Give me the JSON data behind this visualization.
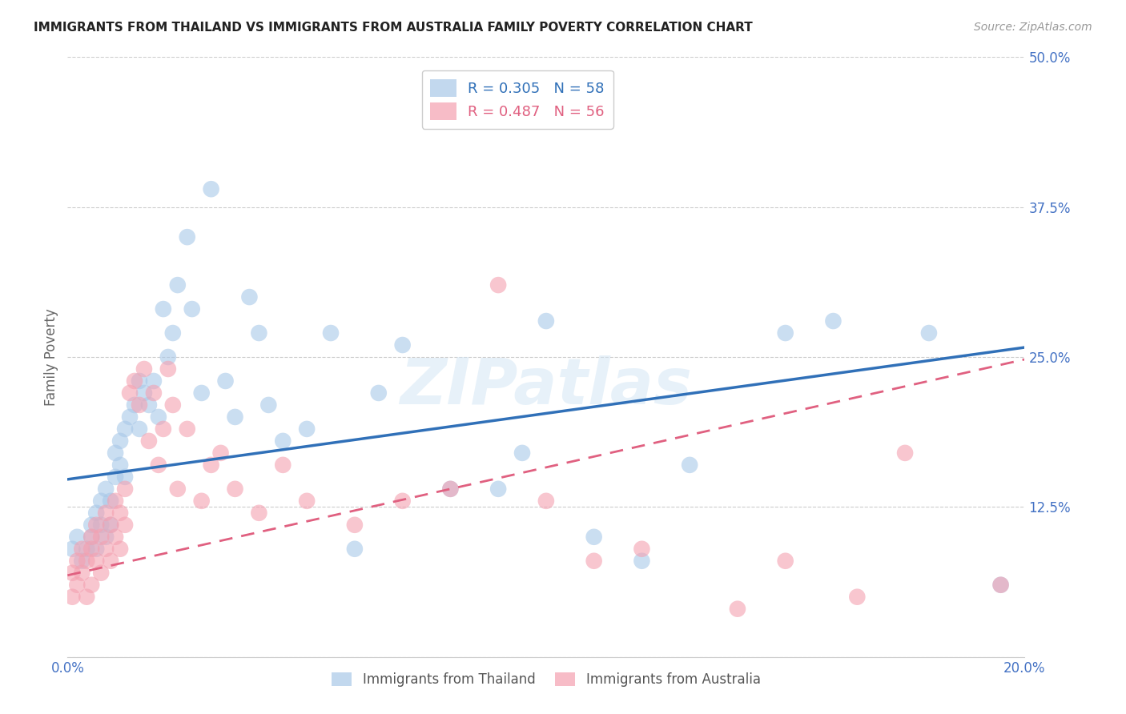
{
  "title": "IMMIGRANTS FROM THAILAND VS IMMIGRANTS FROM AUSTRALIA FAMILY POVERTY CORRELATION CHART",
  "source": "Source: ZipAtlas.com",
  "ylabel": "Family Poverty",
  "xlim": [
    0.0,
    0.2
  ],
  "ylim": [
    0.0,
    0.5
  ],
  "xticks": [
    0.0,
    0.04,
    0.08,
    0.12,
    0.16,
    0.2
  ],
  "xticklabels": [
    "0.0%",
    "",
    "",
    "",
    "",
    "20.0%"
  ],
  "yticks": [
    0.0,
    0.125,
    0.25,
    0.375,
    0.5
  ],
  "yticklabels": [
    "",
    "12.5%",
    "25.0%",
    "37.5%",
    "50.0%"
  ],
  "thailand_color": "#a8c8e8",
  "australia_color": "#f4a0b0",
  "thailand_line_color": "#3070b8",
  "australia_line_color": "#e06080",
  "thailand_R": 0.305,
  "thailand_N": 58,
  "australia_R": 0.487,
  "australia_N": 56,
  "legend_label_thailand": "Immigrants from Thailand",
  "legend_label_australia": "Immigrants from Australia",
  "watermark": "ZIPatlas",
  "background_color": "#ffffff",
  "grid_color": "#cccccc",
  "tick_color": "#4472c4",
  "thailand_scatter_x": [
    0.001,
    0.002,
    0.003,
    0.004,
    0.005,
    0.005,
    0.006,
    0.006,
    0.007,
    0.007,
    0.008,
    0.008,
    0.009,
    0.009,
    0.01,
    0.01,
    0.011,
    0.011,
    0.012,
    0.012,
    0.013,
    0.014,
    0.015,
    0.015,
    0.016,
    0.017,
    0.018,
    0.019,
    0.02,
    0.021,
    0.022,
    0.023,
    0.025,
    0.026,
    0.028,
    0.03,
    0.033,
    0.035,
    0.038,
    0.04,
    0.042,
    0.045,
    0.05,
    0.055,
    0.06,
    0.065,
    0.07,
    0.08,
    0.09,
    0.095,
    0.1,
    0.11,
    0.12,
    0.13,
    0.15,
    0.16,
    0.18,
    0.195
  ],
  "thailand_scatter_y": [
    0.09,
    0.1,
    0.08,
    0.09,
    0.1,
    0.11,
    0.12,
    0.09,
    0.13,
    0.11,
    0.1,
    0.14,
    0.11,
    0.13,
    0.15,
    0.17,
    0.16,
    0.18,
    0.15,
    0.19,
    0.2,
    0.21,
    0.23,
    0.19,
    0.22,
    0.21,
    0.23,
    0.2,
    0.29,
    0.25,
    0.27,
    0.31,
    0.35,
    0.29,
    0.22,
    0.39,
    0.23,
    0.2,
    0.3,
    0.27,
    0.21,
    0.18,
    0.19,
    0.27,
    0.09,
    0.22,
    0.26,
    0.14,
    0.14,
    0.17,
    0.28,
    0.1,
    0.08,
    0.16,
    0.27,
    0.28,
    0.27,
    0.06
  ],
  "australia_scatter_x": [
    0.001,
    0.001,
    0.002,
    0.002,
    0.003,
    0.003,
    0.004,
    0.004,
    0.005,
    0.005,
    0.005,
    0.006,
    0.006,
    0.007,
    0.007,
    0.008,
    0.008,
    0.009,
    0.009,
    0.01,
    0.01,
    0.011,
    0.011,
    0.012,
    0.012,
    0.013,
    0.014,
    0.015,
    0.016,
    0.017,
    0.018,
    0.019,
    0.02,
    0.021,
    0.022,
    0.023,
    0.025,
    0.028,
    0.03,
    0.032,
    0.035,
    0.04,
    0.045,
    0.05,
    0.06,
    0.07,
    0.08,
    0.09,
    0.1,
    0.11,
    0.12,
    0.14,
    0.15,
    0.165,
    0.175,
    0.195
  ],
  "australia_scatter_y": [
    0.05,
    0.07,
    0.06,
    0.08,
    0.07,
    0.09,
    0.05,
    0.08,
    0.06,
    0.09,
    0.1,
    0.08,
    0.11,
    0.07,
    0.1,
    0.09,
    0.12,
    0.08,
    0.11,
    0.1,
    0.13,
    0.09,
    0.12,
    0.14,
    0.11,
    0.22,
    0.23,
    0.21,
    0.24,
    0.18,
    0.22,
    0.16,
    0.19,
    0.24,
    0.21,
    0.14,
    0.19,
    0.13,
    0.16,
    0.17,
    0.14,
    0.12,
    0.16,
    0.13,
    0.11,
    0.13,
    0.14,
    0.31,
    0.13,
    0.08,
    0.09,
    0.04,
    0.08,
    0.05,
    0.17,
    0.06
  ],
  "th_line_x0": 0.0,
  "th_line_y0": 0.148,
  "th_line_x1": 0.2,
  "th_line_y1": 0.258,
  "au_line_x0": 0.0,
  "au_line_y0": 0.068,
  "au_line_x1": 0.2,
  "au_line_y1": 0.248
}
